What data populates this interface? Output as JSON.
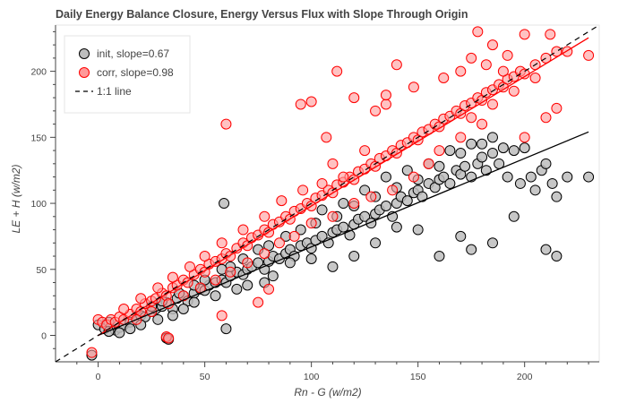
{
  "chart_data": {
    "type": "scatter",
    "title": "Daily Energy Balance Closure, Energy Versus Flux with Slope Through Origin",
    "xlabel": "Rn - G (w/m2)",
    "ylabel": "LE + H (w/m2)",
    "xlim": [
      -20,
      235
    ],
    "ylim": [
      -20,
      235
    ],
    "xticks": [
      "0",
      "50",
      "100",
      "150",
      "200"
    ],
    "yticks": [
      "0",
      "50",
      "100",
      "150",
      "200"
    ],
    "grid": true,
    "legend_position": "top-left",
    "colors": {
      "init_fill": "#bdbdbd",
      "init_edge": "#000000",
      "corr_fill": "#ff9a9a",
      "corr_edge": "#ff0000",
      "init_line": "#000000",
      "corr_line": "#ff0000",
      "one_to_one": "#000000"
    },
    "series": [
      {
        "name": "init, slope=0.67",
        "slope": 0.67,
        "fit_x_max": 230,
        "points": [
          [
            -3,
            -15
          ],
          [
            0,
            8
          ],
          [
            3,
            5
          ],
          [
            5,
            10
          ],
          [
            8,
            4
          ],
          [
            10,
            6
          ],
          [
            12,
            8
          ],
          [
            15,
            10
          ],
          [
            18,
            12
          ],
          [
            20,
            15
          ],
          [
            22,
            14
          ],
          [
            25,
            18
          ],
          [
            27,
            20
          ],
          [
            30,
            22
          ],
          [
            32,
            25
          ],
          [
            35,
            20
          ],
          [
            37,
            28
          ],
          [
            40,
            30
          ],
          [
            42,
            26
          ],
          [
            45,
            32
          ],
          [
            48,
            35
          ],
          [
            50,
            34
          ],
          [
            52,
            38
          ],
          [
            55,
            40
          ],
          [
            58,
            42
          ],
          [
            60,
            40
          ],
          [
            62,
            45
          ],
          [
            65,
            48
          ],
          [
            68,
            46
          ],
          [
            70,
            50
          ],
          [
            72,
            52
          ],
          [
            75,
            55
          ],
          [
            78,
            50
          ],
          [
            80,
            56
          ],
          [
            82,
            60
          ],
          [
            85,
            58
          ],
          [
            88,
            62
          ],
          [
            90,
            65
          ],
          [
            92,
            60
          ],
          [
            95,
            68
          ],
          [
            98,
            70
          ],
          [
            100,
            66
          ],
          [
            102,
            72
          ],
          [
            105,
            75
          ],
          [
            108,
            70
          ],
          [
            110,
            78
          ],
          [
            112,
            80
          ],
          [
            115,
            82
          ],
          [
            118,
            76
          ],
          [
            120,
            84
          ],
          [
            122,
            88
          ],
          [
            125,
            90
          ],
          [
            128,
            85
          ],
          [
            130,
            92
          ],
          [
            132,
            95
          ],
          [
            135,
            98
          ],
          [
            138,
            90
          ],
          [
            140,
            100
          ],
          [
            142,
            105
          ],
          [
            145,
            102
          ],
          [
            148,
            108
          ],
          [
            150,
            110
          ],
          [
            152,
            105
          ],
          [
            155,
            115
          ],
          [
            158,
            112
          ],
          [
            160,
            118
          ],
          [
            162,
            120
          ],
          [
            165,
            115
          ],
          [
            168,
            125
          ],
          [
            170,
            122
          ],
          [
            172,
            128
          ],
          [
            175,
            120
          ],
          [
            178,
            130
          ],
          [
            180,
            135
          ],
          [
            182,
            125
          ],
          [
            185,
            138
          ],
          [
            188,
            130
          ],
          [
            190,
            142
          ],
          [
            192,
            120
          ],
          [
            195,
            140
          ],
          [
            198,
            115
          ],
          [
            200,
            142
          ],
          [
            203,
            120
          ],
          [
            205,
            110
          ],
          [
            208,
            125
          ],
          [
            210,
            130
          ],
          [
            213,
            115
          ],
          [
            215,
            105
          ],
          [
            220,
            120
          ],
          [
            230,
            120
          ],
          [
            59,
            100
          ],
          [
            32,
            -2
          ],
          [
            33,
            -3
          ],
          [
            60,
            5
          ],
          [
            160,
            60
          ],
          [
            175,
            65
          ],
          [
            195,
            90
          ],
          [
            210,
            65
          ],
          [
            215,
            60
          ],
          [
            185,
            70
          ],
          [
            170,
            75
          ],
          [
            150,
            80
          ],
          [
            140,
            82
          ],
          [
            130,
            70
          ],
          [
            110,
            52
          ],
          [
            120,
            60
          ],
          [
            100,
            58
          ],
          [
            90,
            55
          ],
          [
            78,
            40
          ],
          [
            82,
            45
          ],
          [
            70,
            38
          ],
          [
            65,
            35
          ],
          [
            55,
            30
          ],
          [
            45,
            25
          ],
          [
            40,
            20
          ],
          [
            35,
            15
          ],
          [
            28,
            12
          ],
          [
            20,
            8
          ],
          [
            15,
            5
          ],
          [
            10,
            2
          ],
          [
            5,
            3
          ],
          [
            105,
            95
          ],
          [
            115,
            100
          ],
          [
            125,
            110
          ],
          [
            135,
            120
          ],
          [
            145,
            125
          ],
          [
            155,
            130
          ],
          [
            165,
            140
          ],
          [
            175,
            145
          ],
          [
            185,
            150
          ],
          [
            180,
            145
          ],
          [
            170,
            138
          ],
          [
            160,
            128
          ],
          [
            150,
            118
          ],
          [
            140,
            112
          ],
          [
            130,
            105
          ],
          [
            120,
            98
          ],
          [
            112,
            90
          ],
          [
            102,
            85
          ],
          [
            95,
            80
          ],
          [
            88,
            75
          ],
          [
            80,
            68
          ],
          [
            75,
            65
          ],
          [
            68,
            58
          ],
          [
            62,
            52
          ],
          [
            58,
            50
          ],
          [
            50,
            42
          ],
          [
            45,
            38
          ],
          [
            38,
            32
          ],
          [
            30,
            26
          ],
          [
            25,
            22
          ]
        ]
      },
      {
        "name": "corr, slope=0.98",
        "slope": 0.98,
        "fit_x_max": 230,
        "points": [
          [
            -3,
            -13
          ],
          [
            0,
            12
          ],
          [
            2,
            10
          ],
          [
            4,
            8
          ],
          [
            6,
            12
          ],
          [
            8,
            10
          ],
          [
            10,
            14
          ],
          [
            12,
            12
          ],
          [
            15,
            16
          ],
          [
            18,
            20
          ],
          [
            20,
            18
          ],
          [
            22,
            24
          ],
          [
            25,
            26
          ],
          [
            27,
            28
          ],
          [
            30,
            32
          ],
          [
            32,
            30
          ],
          [
            35,
            36
          ],
          [
            37,
            38
          ],
          [
            40,
            42
          ],
          [
            42,
            40
          ],
          [
            45,
            46
          ],
          [
            48,
            50
          ],
          [
            50,
            48
          ],
          [
            52,
            54
          ],
          [
            55,
            56
          ],
          [
            58,
            58
          ],
          [
            60,
            62
          ],
          [
            62,
            60
          ],
          [
            65,
            66
          ],
          [
            68,
            70
          ],
          [
            70,
            68
          ],
          [
            72,
            74
          ],
          [
            75,
            76
          ],
          [
            78,
            80
          ],
          [
            80,
            78
          ],
          [
            82,
            84
          ],
          [
            85,
            86
          ],
          [
            88,
            90
          ],
          [
            90,
            88
          ],
          [
            92,
            94
          ],
          [
            95,
            96
          ],
          [
            98,
            100
          ],
          [
            100,
            98
          ],
          [
            102,
            104
          ],
          [
            105,
            106
          ],
          [
            108,
            110
          ],
          [
            110,
            108
          ],
          [
            112,
            114
          ],
          [
            115,
            116
          ],
          [
            118,
            120
          ],
          [
            120,
            118
          ],
          [
            122,
            124
          ],
          [
            125,
            126
          ],
          [
            128,
            130
          ],
          [
            130,
            128
          ],
          [
            132,
            134
          ],
          [
            135,
            136
          ],
          [
            138,
            140
          ],
          [
            140,
            138
          ],
          [
            142,
            144
          ],
          [
            145,
            146
          ],
          [
            148,
            150
          ],
          [
            150,
            148
          ],
          [
            152,
            154
          ],
          [
            155,
            156
          ],
          [
            158,
            160
          ],
          [
            160,
            158
          ],
          [
            162,
            164
          ],
          [
            165,
            166
          ],
          [
            168,
            170
          ],
          [
            170,
            168
          ],
          [
            172,
            174
          ],
          [
            175,
            176
          ],
          [
            178,
            180
          ],
          [
            180,
            178
          ],
          [
            182,
            184
          ],
          [
            185,
            186
          ],
          [
            188,
            190
          ],
          [
            190,
            188
          ],
          [
            192,
            194
          ],
          [
            195,
            196
          ],
          [
            198,
            200
          ],
          [
            200,
            198
          ],
          [
            205,
            205
          ],
          [
            210,
            210
          ],
          [
            215,
            215
          ],
          [
            220,
            215
          ],
          [
            230,
            212
          ],
          [
            178,
            230
          ],
          [
            200,
            228
          ],
          [
            212,
            228
          ],
          [
            185,
            220
          ],
          [
            175,
            210
          ],
          [
            190,
            200
          ],
          [
            205,
            195
          ],
          [
            215,
            172
          ],
          [
            195,
            185
          ],
          [
            180,
            160
          ],
          [
            170,
            150
          ],
          [
            160,
            140
          ],
          [
            155,
            130
          ],
          [
            148,
            120
          ],
          [
            138,
            110
          ],
          [
            128,
            105
          ],
          [
            120,
            100
          ],
          [
            110,
            90
          ],
          [
            100,
            85
          ],
          [
            92,
            75
          ],
          [
            85,
            70
          ],
          [
            78,
            62
          ],
          [
            70,
            55
          ],
          [
            62,
            48
          ],
          [
            55,
            42
          ],
          [
            48,
            36
          ],
          [
            40,
            30
          ],
          [
            33,
            24
          ],
          [
            25,
            18
          ],
          [
            18,
            12
          ],
          [
            60,
            160
          ],
          [
            95,
            175
          ],
          [
            100,
            177
          ],
          [
            107,
            150
          ],
          [
            110,
            130
          ],
          [
            130,
            170
          ],
          [
            120,
            180
          ],
          [
            140,
            205
          ],
          [
            135,
            175
          ],
          [
            125,
            140
          ],
          [
            115,
            120
          ],
          [
            105,
            115
          ],
          [
            96,
            110
          ],
          [
            86,
            102
          ],
          [
            78,
            90
          ],
          [
            68,
            80
          ],
          [
            58,
            70
          ],
          [
            50,
            60
          ],
          [
            43,
            52
          ],
          [
            35,
            44
          ],
          [
            28,
            36
          ],
          [
            20,
            28
          ],
          [
            12,
            20
          ],
          [
            32,
            -1
          ],
          [
            33,
            -2
          ],
          [
            58,
            15
          ],
          [
            75,
            25
          ],
          [
            80,
            35
          ],
          [
            112,
            200
          ],
          [
            135,
            182
          ],
          [
            148,
            188
          ],
          [
            162,
            195
          ],
          [
            170,
            200
          ],
          [
            182,
            205
          ],
          [
            192,
            212
          ],
          [
            210,
            165
          ],
          [
            200,
            150
          ],
          [
            185,
            175
          ],
          [
            175,
            165
          ]
        ]
      },
      {
        "name": "1:1 line",
        "slope": 1.0,
        "style": "dashed"
      }
    ]
  }
}
